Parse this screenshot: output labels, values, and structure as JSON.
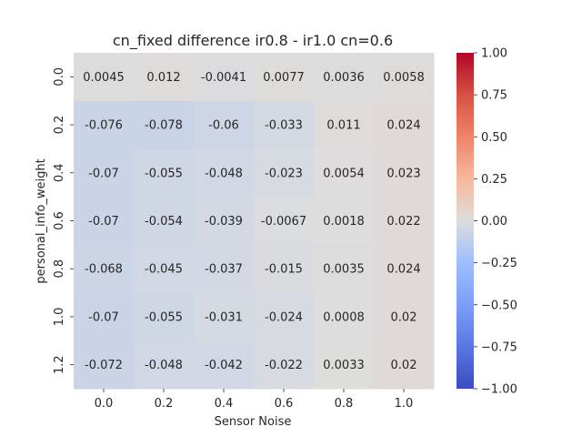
{
  "chart_data": {
    "type": "heatmap",
    "title": "cn_fixed difference ir0.8 - ir1.0 cn=0.6",
    "xlabel": "Sensor Noise",
    "ylabel": "personal_info_weight",
    "x_categories": [
      "0.0",
      "0.2",
      "0.4",
      "0.6",
      "0.8",
      "1.0"
    ],
    "y_categories": [
      "0.0",
      "0.2",
      "0.4",
      "0.6",
      "0.8",
      "1.0",
      "1.2"
    ],
    "values": [
      [
        0.0045,
        0.012,
        -0.0041,
        0.0077,
        0.0036,
        0.0058
      ],
      [
        -0.076,
        -0.078,
        -0.06,
        -0.033,
        0.011,
        0.024
      ],
      [
        -0.07,
        -0.055,
        -0.048,
        -0.023,
        0.0054,
        0.023
      ],
      [
        -0.07,
        -0.054,
        -0.039,
        -0.0067,
        0.0018,
        0.022
      ],
      [
        -0.068,
        -0.045,
        -0.037,
        -0.015,
        0.0035,
        0.024
      ],
      [
        -0.07,
        -0.055,
        -0.031,
        -0.024,
        0.0008,
        0.02
      ],
      [
        -0.072,
        -0.048,
        -0.042,
        -0.022,
        0.0033,
        0.02
      ]
    ],
    "colormap": "coolwarm",
    "vmin": -1.0,
    "vmax": 1.0,
    "colorbar_ticks": [
      "1.00",
      "0.75",
      "0.50",
      "0.25",
      "0.00",
      "−0.25",
      "−0.50",
      "−0.75",
      "−1.00"
    ],
    "colorbar_tick_values": [
      1.0,
      0.75,
      0.5,
      0.25,
      0.0,
      -0.25,
      -0.5,
      -0.75,
      -1.0
    ],
    "colors": {
      "min": "#3b4cc0",
      "mid": "#dddddd",
      "max": "#b40426"
    }
  }
}
